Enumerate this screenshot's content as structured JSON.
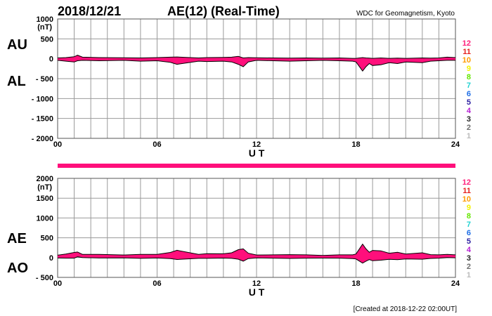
{
  "header": {
    "date": "2018/12/21",
    "title": "AE(12) (Real-Time)",
    "source": "WDC for Geomagnetism, Kyoto"
  },
  "footer": {
    "created": "[Created at 2018-12-22 02:00UT]"
  },
  "colors": {
    "fill": "#ff0f7b",
    "outline": "#000000",
    "grid": "#9a9a9a",
    "strip": "#ff0f7b"
  },
  "station_legend": [
    {
      "label": "12",
      "color": "#ff1e7a"
    },
    {
      "label": "11",
      "color": "#e6201e"
    },
    {
      "label": "10",
      "color": "#ff9a00"
    },
    {
      "label": "9",
      "color": "#f2f200"
    },
    {
      "label": "8",
      "color": "#64e600"
    },
    {
      "label": "7",
      "color": "#22d2d2"
    },
    {
      "label": "6",
      "color": "#1e6ee6"
    },
    {
      "label": "5",
      "color": "#2a1ea0"
    },
    {
      "label": "4",
      "color": "#b41ed2"
    },
    {
      "label": "3",
      "color": "#222222"
    },
    {
      "label": "2",
      "color": "#6e6e6e"
    },
    {
      "label": "1",
      "color": "#bbbbbb"
    }
  ],
  "chart_data": [
    {
      "type": "area",
      "panel": "AU/AL",
      "side_labels": [
        "AU",
        "AL"
      ],
      "ylabel_unit": "(nT)",
      "xlabel": "U T",
      "xlim": [
        0,
        24
      ],
      "ylim": [
        -2000,
        1000
      ],
      "yticks": [
        1000,
        500,
        0,
        -500,
        -1000,
        -1500,
        -2000
      ],
      "ytick_labels": [
        "1000",
        "500",
        "0",
        "- 500",
        "- 1000",
        "- 1500",
        "- 2000"
      ],
      "xtick_labels": [
        "00",
        "06",
        "12",
        "18",
        "24"
      ],
      "x": [
        0,
        0.5,
        1.0,
        1.2,
        1.5,
        2.5,
        4.0,
        5.0,
        6.0,
        6.8,
        7.2,
        8.5,
        9.0,
        10.0,
        10.5,
        10.9,
        11.2,
        11.5,
        12.0,
        13.0,
        14.0,
        15.0,
        16.0,
        17.0,
        17.8,
        18.0,
        18.4,
        18.6,
        18.8,
        19.0,
        19.5,
        20.0,
        20.5,
        21.0,
        22.0,
        22.5,
        23.0,
        23.5,
        24.0
      ],
      "series": [
        {
          "name": "AU",
          "values": [
            20,
            30,
            50,
            90,
            40,
            30,
            25,
            20,
            30,
            40,
            45,
            20,
            30,
            35,
            40,
            60,
            20,
            30,
            25,
            20,
            15,
            20,
            15,
            20,
            10,
            10,
            30,
            20,
            15,
            10,
            20,
            10,
            15,
            10,
            20,
            15,
            20,
            40,
            30
          ]
        },
        {
          "name": "AL",
          "values": [
            -40,
            -60,
            -80,
            -50,
            -40,
            -50,
            -40,
            -60,
            -50,
            -90,
            -140,
            -60,
            -70,
            -60,
            -80,
            -140,
            -200,
            -80,
            -40,
            -50,
            -60,
            -50,
            -40,
            -50,
            -60,
            -80,
            -310,
            -200,
            -120,
            -170,
            -150,
            -100,
            -120,
            -80,
            -100,
            -60,
            -50,
            -40,
            -40
          ]
        }
      ]
    },
    {
      "type": "area",
      "panel": "AE/AO",
      "side_labels": [
        "AE",
        "AO"
      ],
      "ylabel_unit": "(nT)",
      "xlabel": "U T",
      "xlim": [
        0,
        24
      ],
      "ylim": [
        -500,
        2000
      ],
      "yticks": [
        2000,
        1500,
        1000,
        500,
        0,
        -500
      ],
      "ytick_labels": [
        "2000",
        "1500",
        "1000",
        "500",
        "0",
        "- 500"
      ],
      "xtick_labels": [
        "00",
        "06",
        "12",
        "18",
        "24"
      ],
      "x": [
        0,
        0.5,
        1.0,
        1.2,
        1.5,
        2.5,
        4.0,
        5.0,
        6.0,
        6.8,
        7.2,
        8.5,
        9.0,
        10.0,
        10.5,
        10.9,
        11.2,
        11.5,
        12.0,
        13.0,
        14.0,
        15.0,
        16.0,
        17.0,
        17.8,
        18.0,
        18.4,
        18.6,
        18.8,
        19.0,
        19.5,
        20.0,
        20.5,
        21.0,
        22.0,
        22.5,
        23.0,
        23.5,
        24.0
      ],
      "series": [
        {
          "name": "AE",
          "values": [
            60,
            90,
            130,
            140,
            80,
            80,
            65,
            80,
            80,
            130,
            185,
            80,
            100,
            95,
            120,
            200,
            220,
            110,
            65,
            70,
            75,
            70,
            55,
            70,
            70,
            90,
            340,
            220,
            135,
            180,
            170,
            110,
            135,
            90,
            120,
            75,
            70,
            80,
            70
          ]
        },
        {
          "name": "AO",
          "values": [
            -10,
            -15,
            -15,
            20,
            0,
            -10,
            -8,
            -20,
            -10,
            -25,
            -48,
            -20,
            -20,
            -12,
            -20,
            -40,
            -90,
            -25,
            -8,
            -15,
            -22,
            -15,
            -12,
            -15,
            -25,
            -35,
            -140,
            -90,
            -52,
            -80,
            -65,
            -45,
            -52,
            -35,
            -40,
            -22,
            -15,
            0,
            -5
          ]
        }
      ]
    }
  ]
}
